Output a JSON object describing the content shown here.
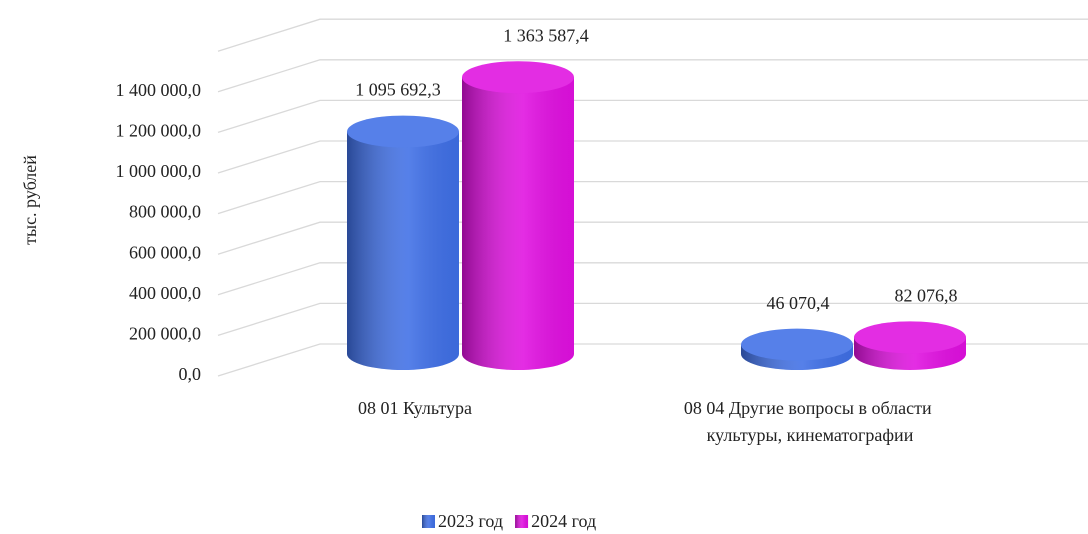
{
  "chart_data": {
    "type": "bar3d",
    "y_axis_label": "тыс. рублей",
    "categories": [
      "08 01 Культура",
      "08 04 Другие вопросы в области культуры, кинематографии"
    ],
    "series": [
      {
        "name": "2023 год",
        "color": "#3f6fe6",
        "values": [
          1095692.3,
          46070.4
        ],
        "value_labels": [
          "1 095 692,3",
          "46 070,4"
        ]
      },
      {
        "name": "2024 год",
        "color": "#e010e0",
        "values": [
          1363587.4,
          82076.8
        ],
        "value_labels": [
          "1 363 587,4",
          "82 076,8"
        ]
      }
    ],
    "ylim": [
      0,
      1600000
    ],
    "yticks": [
      {
        "value": 0,
        "label": "0,0"
      },
      {
        "value": 200000,
        "label": "200 000,0"
      },
      {
        "value": 400000,
        "label": "400 000,0"
      },
      {
        "value": 600000,
        "label": "600 000,0"
      },
      {
        "value": 800000,
        "label": "800 000,0"
      },
      {
        "value": 1000000,
        "label": "1 000 000,0"
      },
      {
        "value": 1200000,
        "label": "1 200 000,0"
      },
      {
        "value": 1400000,
        "label": "1 400 000,0"
      }
    ],
    "grid": true,
    "legend": "bottom"
  }
}
